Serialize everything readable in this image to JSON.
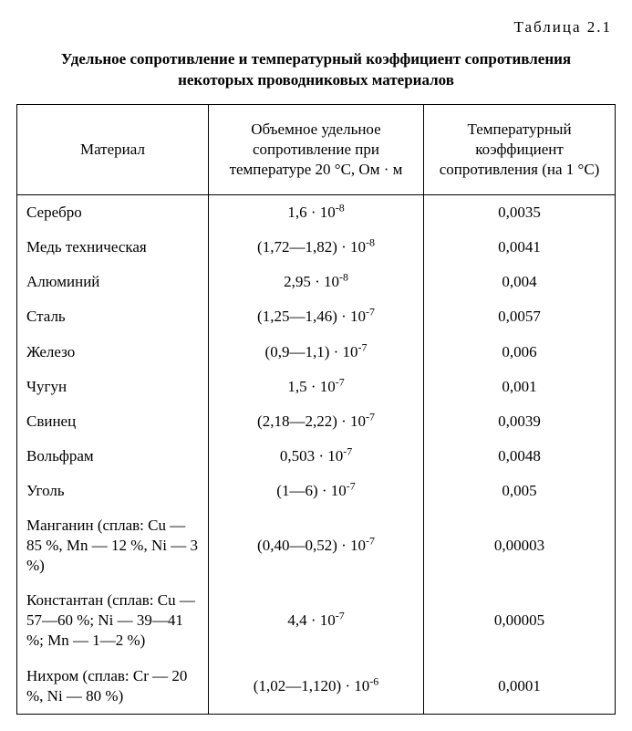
{
  "table_label": "Таблица 2.1",
  "title": "Удельное сопротивление и температурный коэффициент сопротивления некоторых проводниковых материалов",
  "columns": {
    "c1": "Материал",
    "c2": "Объемное удельное сопротивление при температуре 20 °С, Ом · м",
    "c3": "Температурный коэффициент сопротивления (на 1 °С)"
  },
  "rows": [
    {
      "material": "Серебро",
      "resist_html": "1,6 · 10<sup>-8</sup>",
      "coeff": "0,0035"
    },
    {
      "material": "Медь техническая",
      "resist_html": "(1,72—1,82) · 10<sup>-8</sup>",
      "coeff": "0,0041"
    },
    {
      "material": "Алюминий",
      "resist_html": "2,95 · 10<sup>-8</sup>",
      "coeff": "0,004"
    },
    {
      "material": "Сталь",
      "resist_html": "(1,25—1,46) · 10<sup>-7</sup>",
      "coeff": "0,0057"
    },
    {
      "material": "Железо",
      "resist_html": "(0,9—1,1) · 10<sup>-7</sup>",
      "coeff": "0,006"
    },
    {
      "material": "Чугун",
      "resist_html": "1,5 · 10<sup>-7</sup>",
      "coeff": "0,001"
    },
    {
      "material": "Свинец",
      "resist_html": "(2,18—2,22) · 10<sup>-7</sup>",
      "coeff": "0,0039"
    },
    {
      "material": "Вольфрам",
      "resist_html": "0,503 · 10<sup>-7</sup>",
      "coeff": "0,0048"
    },
    {
      "material": "Уголь",
      "resist_html": "(1—6) · 10<sup>-7</sup>",
      "coeff": "0,005"
    },
    {
      "material": "Манганин (сплав: Cu — 85 %, Mn — 12 %, Ni — 3 %)",
      "resist_html": "(0,40—0,52) · 10<sup>-7</sup>",
      "coeff": "0,00003"
    },
    {
      "material": "Константан (сплав: Cu — 57—60 %; Ni — 39—41 %; Mn — 1—2 %)",
      "resist_html": "4,4 · 10<sup>-7</sup>",
      "coeff": "0,00005"
    },
    {
      "material": "Нихром (сплав: Cr — 20 %, Ni — 80 %)",
      "resist_html": "(1,02—1,120) · 10<sup>-6</sup>",
      "coeff": "0,0001"
    }
  ],
  "style": {
    "background_color": "#ffffff",
    "text_color": "#000000",
    "border_color": "#000000",
    "font_family": "Times New Roman",
    "title_fontsize": 17,
    "cell_fontsize": 17,
    "column_widths_pct": [
      32,
      36,
      32
    ]
  }
}
